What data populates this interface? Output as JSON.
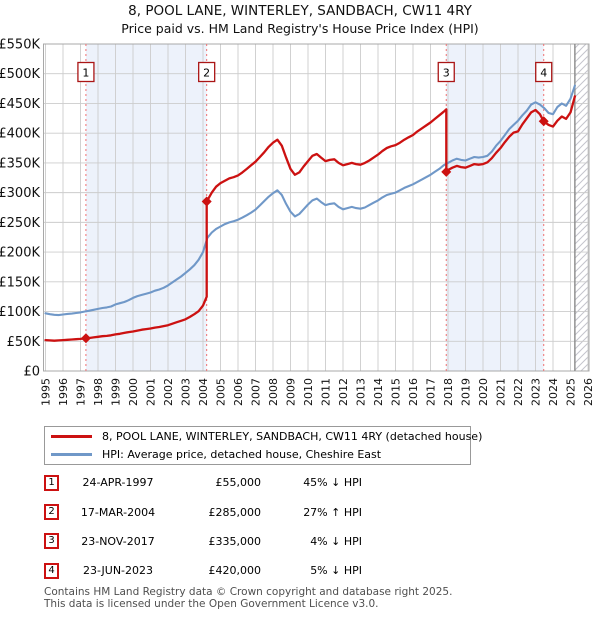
{
  "page": {
    "title": "8, POOL LANE, WINTERLEY, SANDBACH, CW11 4RY",
    "subtitle": "Price paid vs. HM Land Registry's House Price Index (HPI)"
  },
  "chart_data": {
    "type": "line",
    "title": "8, POOL LANE, WINTERLEY, SANDBACH, CW11 4RY",
    "subtitle": "Price paid vs. HM Land Registry's House Price Index (HPI)",
    "y_unit": "GBP thousands",
    "y_axis": {
      "ticks_k": [
        0,
        50,
        100,
        150,
        200,
        250,
        300,
        350,
        400,
        450,
        500,
        550
      ],
      "tick_labels": [
        "£0",
        "£50K",
        "£100K",
        "£150K",
        "£200K",
        "£250K",
        "£300K",
        "£350K",
        "£400K",
        "£450K",
        "£500K",
        "£550K"
      ],
      "range_k": [
        0,
        550
      ]
    },
    "x_axis": {
      "ticks": [
        1995,
        1996,
        1997,
        1998,
        1999,
        2000,
        2001,
        2002,
        2003,
        2004,
        2005,
        2006,
        2007,
        2008,
        2009,
        2010,
        2011,
        2012,
        2013,
        2014,
        2015,
        2016,
        2017,
        2018,
        2019,
        2020,
        2021,
        2022,
        2023,
        2024,
        2025,
        2026
      ],
      "range": [
        1995,
        2026.2
      ]
    },
    "grid": true,
    "legend_position": "below",
    "future_hatch_start": 2025.25,
    "shaded_bands": [
      [
        1997.31,
        2004.21
      ],
      [
        2017.9,
        2023.47
      ]
    ],
    "sales_markers": [
      {
        "num": "1",
        "x": 1997.31,
        "price_k": 55
      },
      {
        "num": "2",
        "x": 2004.21,
        "price_k": 285
      },
      {
        "num": "3",
        "x": 2017.9,
        "price_k": 335
      },
      {
        "num": "4",
        "x": 2023.47,
        "price_k": 420
      }
    ],
    "series": [
      {
        "id": "price_paid",
        "name": "8, POOL LANE, WINTERLEY, SANDBACH, CW11 4RY (detached house)",
        "color": "#cc1111",
        "points": [
          [
            1995.0,
            52
          ],
          [
            1995.25,
            51.5
          ],
          [
            1995.5,
            51
          ],
          [
            1995.75,
            51.5
          ],
          [
            1996.0,
            52
          ],
          [
            1996.25,
            52.5
          ],
          [
            1996.5,
            53
          ],
          [
            1996.75,
            53.5
          ],
          [
            1997.0,
            54
          ],
          [
            1997.31,
            55
          ],
          [
            1997.5,
            55.5
          ],
          [
            1997.75,
            56.5
          ],
          [
            1998.0,
            57.5
          ],
          [
            1998.25,
            58.5
          ],
          [
            1998.5,
            59
          ],
          [
            1998.75,
            60
          ],
          [
            1999.0,
            61.5
          ],
          [
            1999.25,
            62.5
          ],
          [
            1999.5,
            64
          ],
          [
            1999.75,
            65.5
          ],
          [
            2000.0,
            66.5
          ],
          [
            2000.25,
            68
          ],
          [
            2000.5,
            69.5
          ],
          [
            2000.75,
            70.5
          ],
          [
            2001.0,
            71.5
          ],
          [
            2001.25,
            73
          ],
          [
            2001.5,
            74
          ],
          [
            2001.75,
            75.5
          ],
          [
            2002.0,
            77
          ],
          [
            2002.25,
            79.5
          ],
          [
            2002.5,
            82
          ],
          [
            2002.75,
            84.5
          ],
          [
            2003.0,
            87
          ],
          [
            2003.25,
            91
          ],
          [
            2003.5,
            95.5
          ],
          [
            2003.75,
            100.5
          ],
          [
            2004.0,
            110
          ],
          [
            2004.21,
            125
          ],
          [
            2004.21,
            285
          ],
          [
            2004.5,
            300
          ],
          [
            2004.75,
            310
          ],
          [
            2005.0,
            316
          ],
          [
            2005.25,
            320
          ],
          [
            2005.5,
            324
          ],
          [
            2005.75,
            326
          ],
          [
            2006.0,
            329
          ],
          [
            2006.25,
            334
          ],
          [
            2006.5,
            340
          ],
          [
            2006.75,
            346
          ],
          [
            2007.0,
            352
          ],
          [
            2007.25,
            360
          ],
          [
            2007.5,
            368
          ],
          [
            2007.75,
            377
          ],
          [
            2008.0,
            384
          ],
          [
            2008.25,
            389
          ],
          [
            2008.5,
            379
          ],
          [
            2008.75,
            359
          ],
          [
            2009.0,
            340
          ],
          [
            2009.25,
            330
          ],
          [
            2009.5,
            334
          ],
          [
            2009.75,
            344
          ],
          [
            2010.0,
            353
          ],
          [
            2010.25,
            362
          ],
          [
            2010.5,
            365
          ],
          [
            2010.75,
            359
          ],
          [
            2011.0,
            353
          ],
          [
            2011.25,
            355
          ],
          [
            2011.5,
            356
          ],
          [
            2011.75,
            350
          ],
          [
            2012.0,
            346
          ],
          [
            2012.25,
            348
          ],
          [
            2012.5,
            350
          ],
          [
            2012.75,
            348
          ],
          [
            2013.0,
            347
          ],
          [
            2013.25,
            350
          ],
          [
            2013.5,
            354
          ],
          [
            2013.75,
            359
          ],
          [
            2014.0,
            364
          ],
          [
            2014.25,
            370
          ],
          [
            2014.5,
            375
          ],
          [
            2014.75,
            378
          ],
          [
            2015.0,
            380
          ],
          [
            2015.25,
            384
          ],
          [
            2015.5,
            389
          ],
          [
            2015.75,
            393
          ],
          [
            2016.0,
            397
          ],
          [
            2016.25,
            403
          ],
          [
            2016.5,
            408
          ],
          [
            2016.75,
            413
          ],
          [
            2017.0,
            418
          ],
          [
            2017.25,
            424
          ],
          [
            2017.5,
            430
          ],
          [
            2017.75,
            436
          ],
          [
            2017.9,
            440
          ],
          [
            2017.9,
            335
          ],
          [
            2018.0,
            338
          ],
          [
            2018.25,
            342
          ],
          [
            2018.5,
            345
          ],
          [
            2018.75,
            343
          ],
          [
            2019.0,
            342
          ],
          [
            2019.25,
            345
          ],
          [
            2019.5,
            348
          ],
          [
            2019.75,
            347
          ],
          [
            2020.0,
            348
          ],
          [
            2020.25,
            351
          ],
          [
            2020.5,
            358
          ],
          [
            2020.75,
            367
          ],
          [
            2021.0,
            375
          ],
          [
            2021.25,
            385
          ],
          [
            2021.5,
            394
          ],
          [
            2021.75,
            401
          ],
          [
            2022.0,
            403
          ],
          [
            2022.25,
            415
          ],
          [
            2022.5,
            425
          ],
          [
            2022.75,
            435
          ],
          [
            2023.0,
            439
          ],
          [
            2023.25,
            432
          ],
          [
            2023.47,
            420
          ],
          [
            2023.75,
            414
          ],
          [
            2024.0,
            411
          ],
          [
            2024.25,
            421
          ],
          [
            2024.5,
            428
          ],
          [
            2024.75,
            424
          ],
          [
            2025.0,
            435
          ],
          [
            2025.25,
            462
          ]
        ]
      },
      {
        "id": "hpi",
        "name": "HPI: Average price, detached house, Cheshire East",
        "color": "#7098c8",
        "points": [
          [
            1995.0,
            97
          ],
          [
            1995.25,
            95.5
          ],
          [
            1995.5,
            94.5
          ],
          [
            1995.75,
            94
          ],
          [
            1996.0,
            95
          ],
          [
            1996.25,
            96
          ],
          [
            1996.5,
            96.5
          ],
          [
            1996.75,
            97.5
          ],
          [
            1997.0,
            98.5
          ],
          [
            1997.25,
            100
          ],
          [
            1997.5,
            101.5
          ],
          [
            1997.75,
            103
          ],
          [
            1998.0,
            104.5
          ],
          [
            1998.25,
            106
          ],
          [
            1998.5,
            107
          ],
          [
            1998.75,
            108.5
          ],
          [
            1999.0,
            112
          ],
          [
            1999.25,
            114
          ],
          [
            1999.5,
            116
          ],
          [
            1999.75,
            119
          ],
          [
            2000.0,
            123
          ],
          [
            2000.25,
            126
          ],
          [
            2000.5,
            128
          ],
          [
            2000.75,
            130
          ],
          [
            2001.0,
            132
          ],
          [
            2001.25,
            135
          ],
          [
            2001.5,
            137
          ],
          [
            2001.75,
            140
          ],
          [
            2002.0,
            144
          ],
          [
            2002.25,
            149
          ],
          [
            2002.5,
            154
          ],
          [
            2002.75,
            159
          ],
          [
            2003.0,
            165
          ],
          [
            2003.25,
            171
          ],
          [
            2003.5,
            178
          ],
          [
            2003.75,
            187
          ],
          [
            2004.0,
            200
          ],
          [
            2004.25,
            224
          ],
          [
            2004.5,
            233
          ],
          [
            2004.75,
            239
          ],
          [
            2005.0,
            243
          ],
          [
            2005.25,
            247
          ],
          [
            2005.5,
            250
          ],
          [
            2005.75,
            252
          ],
          [
            2006.0,
            254.5
          ],
          [
            2006.25,
            258
          ],
          [
            2006.5,
            262
          ],
          [
            2006.75,
            266.5
          ],
          [
            2007.0,
            271.5
          ],
          [
            2007.25,
            278.5
          ],
          [
            2007.5,
            286
          ],
          [
            2007.75,
            293
          ],
          [
            2008.0,
            299
          ],
          [
            2008.25,
            304
          ],
          [
            2008.5,
            296
          ],
          [
            2008.75,
            281
          ],
          [
            2009.0,
            268
          ],
          [
            2009.25,
            260
          ],
          [
            2009.5,
            264
          ],
          [
            2009.75,
            272
          ],
          [
            2010.0,
            280
          ],
          [
            2010.25,
            287
          ],
          [
            2010.5,
            290
          ],
          [
            2010.75,
            284
          ],
          [
            2011.0,
            279
          ],
          [
            2011.25,
            281
          ],
          [
            2011.5,
            282
          ],
          [
            2011.75,
            276
          ],
          [
            2012.0,
            272
          ],
          [
            2012.25,
            274
          ],
          [
            2012.5,
            276
          ],
          [
            2012.75,
            274
          ],
          [
            2013.0,
            273
          ],
          [
            2013.25,
            275
          ],
          [
            2013.5,
            279
          ],
          [
            2013.75,
            283
          ],
          [
            2014.0,
            287
          ],
          [
            2014.25,
            292
          ],
          [
            2014.5,
            296
          ],
          [
            2014.75,
            298
          ],
          [
            2015.0,
            300
          ],
          [
            2015.25,
            304
          ],
          [
            2015.5,
            308
          ],
          [
            2015.75,
            311
          ],
          [
            2016.0,
            314
          ],
          [
            2016.25,
            318
          ],
          [
            2016.5,
            322
          ],
          [
            2016.75,
            326
          ],
          [
            2017.0,
            330
          ],
          [
            2017.25,
            335
          ],
          [
            2017.5,
            340
          ],
          [
            2017.75,
            346
          ],
          [
            2018.0,
            350
          ],
          [
            2018.25,
            354
          ],
          [
            2018.5,
            357
          ],
          [
            2018.75,
            355
          ],
          [
            2019.0,
            354
          ],
          [
            2019.25,
            357
          ],
          [
            2019.5,
            360
          ],
          [
            2019.75,
            359
          ],
          [
            2020.0,
            360
          ],
          [
            2020.25,
            362
          ],
          [
            2020.5,
            369
          ],
          [
            2020.75,
            379
          ],
          [
            2021.0,
            387
          ],
          [
            2021.25,
            397
          ],
          [
            2021.5,
            407
          ],
          [
            2021.75,
            414
          ],
          [
            2022.0,
            421
          ],
          [
            2022.25,
            430
          ],
          [
            2022.5,
            438
          ],
          [
            2022.75,
            448
          ],
          [
            2023.0,
            452
          ],
          [
            2023.25,
            448
          ],
          [
            2023.5,
            442
          ],
          [
            2023.75,
            434
          ],
          [
            2024.0,
            432
          ],
          [
            2024.25,
            444
          ],
          [
            2024.5,
            450
          ],
          [
            2024.75,
            446
          ],
          [
            2025.0,
            458
          ],
          [
            2025.25,
            480
          ]
        ]
      }
    ]
  },
  "legend": {
    "entries": [
      {
        "label": "8, POOL LANE, WINTERLEY, SANDBACH, CW11 4RY (detached house)",
        "color": "#cc1111"
      },
      {
        "label": "HPI: Average price, detached house, Cheshire East",
        "color": "#7098c8"
      }
    ]
  },
  "transactions": [
    {
      "num": "1",
      "date": "24-APR-1997",
      "price": "£55,000",
      "hpi_diff": "45% ↓ HPI"
    },
    {
      "num": "2",
      "date": "17-MAR-2004",
      "price": "£285,000",
      "hpi_diff": "27% ↑ HPI"
    },
    {
      "num": "3",
      "date": "23-NOV-2017",
      "price": "£335,000",
      "hpi_diff": "4% ↓ HPI"
    },
    {
      "num": "4",
      "date": "23-JUN-2023",
      "price": "£420,000",
      "hpi_diff": "5% ↓ HPI"
    }
  ],
  "footer": {
    "line1": "Contains HM Land Registry data © Crown copyright and database right 2025.",
    "line2": "This data is licensed under the Open Government Licence v3.0."
  },
  "colors": {
    "property_line": "#cc1111",
    "hpi_line": "#7098c8",
    "sale_dashed_line": "#ef7070",
    "shaded_band": "#edf2fb",
    "grid": "#cccccc",
    "plot_border": "#a8a8a8",
    "hatch_line": "#c4c4cc",
    "marker_box_border": "#aa1515",
    "footer_text": "#4f4f4f"
  }
}
